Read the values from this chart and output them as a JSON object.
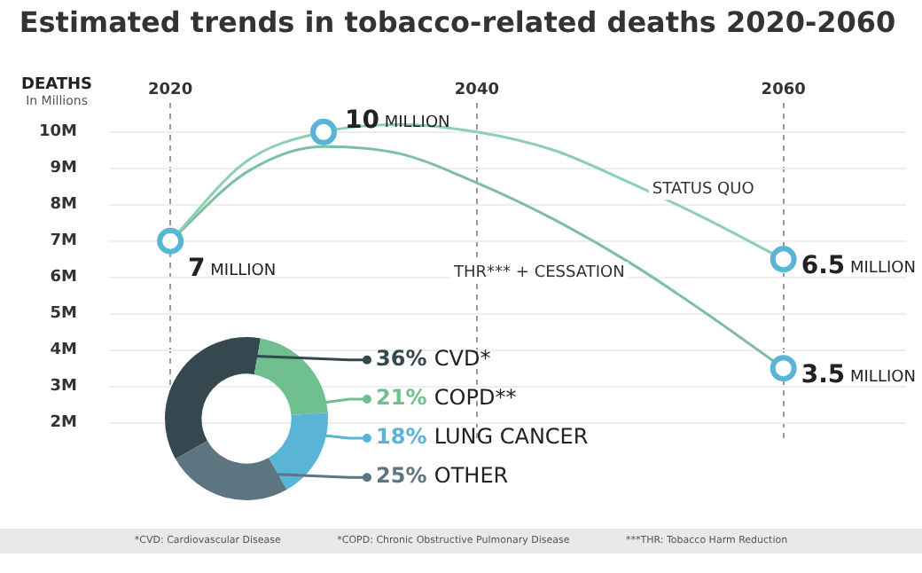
{
  "chart_data": [
    {
      "type": "line",
      "title": "Estimated trends in tobacco-related deaths 2020-2060",
      "ylabel": "DEATHS",
      "annotations": [
        "In Millions",
        "*CVD: Cardiovascular Disease",
        "*COPD: Chronic Obstructive Pulmonary Disease",
        "***THR: Tobacco Harm Reduction"
      ],
      "x": [
        2020,
        2025,
        2030,
        2035,
        2040,
        2045,
        2050,
        2055,
        2060
      ],
      "series": [
        {
          "name": "STATUS QUO",
          "color": "#8ccfb4",
          "values": [
            7,
            9.2,
            10,
            10.2,
            10,
            9.5,
            8.6,
            7.6,
            6.5
          ],
          "value_labels": [
            "7 MILLION",
            null,
            "10 MILLION",
            null,
            null,
            null,
            null,
            null,
            "6.5 MILLION"
          ]
        },
        {
          "name": "THR*** + CESSATION",
          "color": "#7dbfa0",
          "values": [
            7,
            8.9,
            9.6,
            9.4,
            8.6,
            7.6,
            6.4,
            5.0,
            3.5
          ],
          "value_labels": [
            null,
            null,
            null,
            null,
            null,
            null,
            null,
            null,
            "3.5 MILLION"
          ]
        }
      ],
      "xlim": [
        2016,
        2068
      ],
      "xticks": [
        2020,
        2040,
        2060
      ],
      "ylim": [
        1.5,
        10.8
      ],
      "yticks": [
        {
          "value": 2,
          "label": "2M"
        },
        {
          "value": 3,
          "label": "3M"
        },
        {
          "value": 4,
          "label": "4M"
        },
        {
          "value": 5,
          "label": "5M"
        },
        {
          "value": 6,
          "label": "6M"
        },
        {
          "value": 7,
          "label": "7M"
        },
        {
          "value": 8,
          "label": "8M"
        },
        {
          "value": 9,
          "label": "9M"
        },
        {
          "value": 10,
          "label": "10M"
        }
      ],
      "grid": true,
      "line_style": "solid",
      "legend": false
    },
    {
      "type": "donut",
      "categories": [
        "CVD*",
        "COPD**",
        "LUNG CANCER",
        "OTHER"
      ],
      "values": [
        36,
        21,
        18,
        25
      ],
      "value_labels": [
        "36%",
        "21%",
        "18%",
        "25%"
      ],
      "colors": [
        "#35474f",
        "#6fbf8f",
        "#5ab4d6",
        "#5d7580"
      ],
      "legend": false
    }
  ]
}
